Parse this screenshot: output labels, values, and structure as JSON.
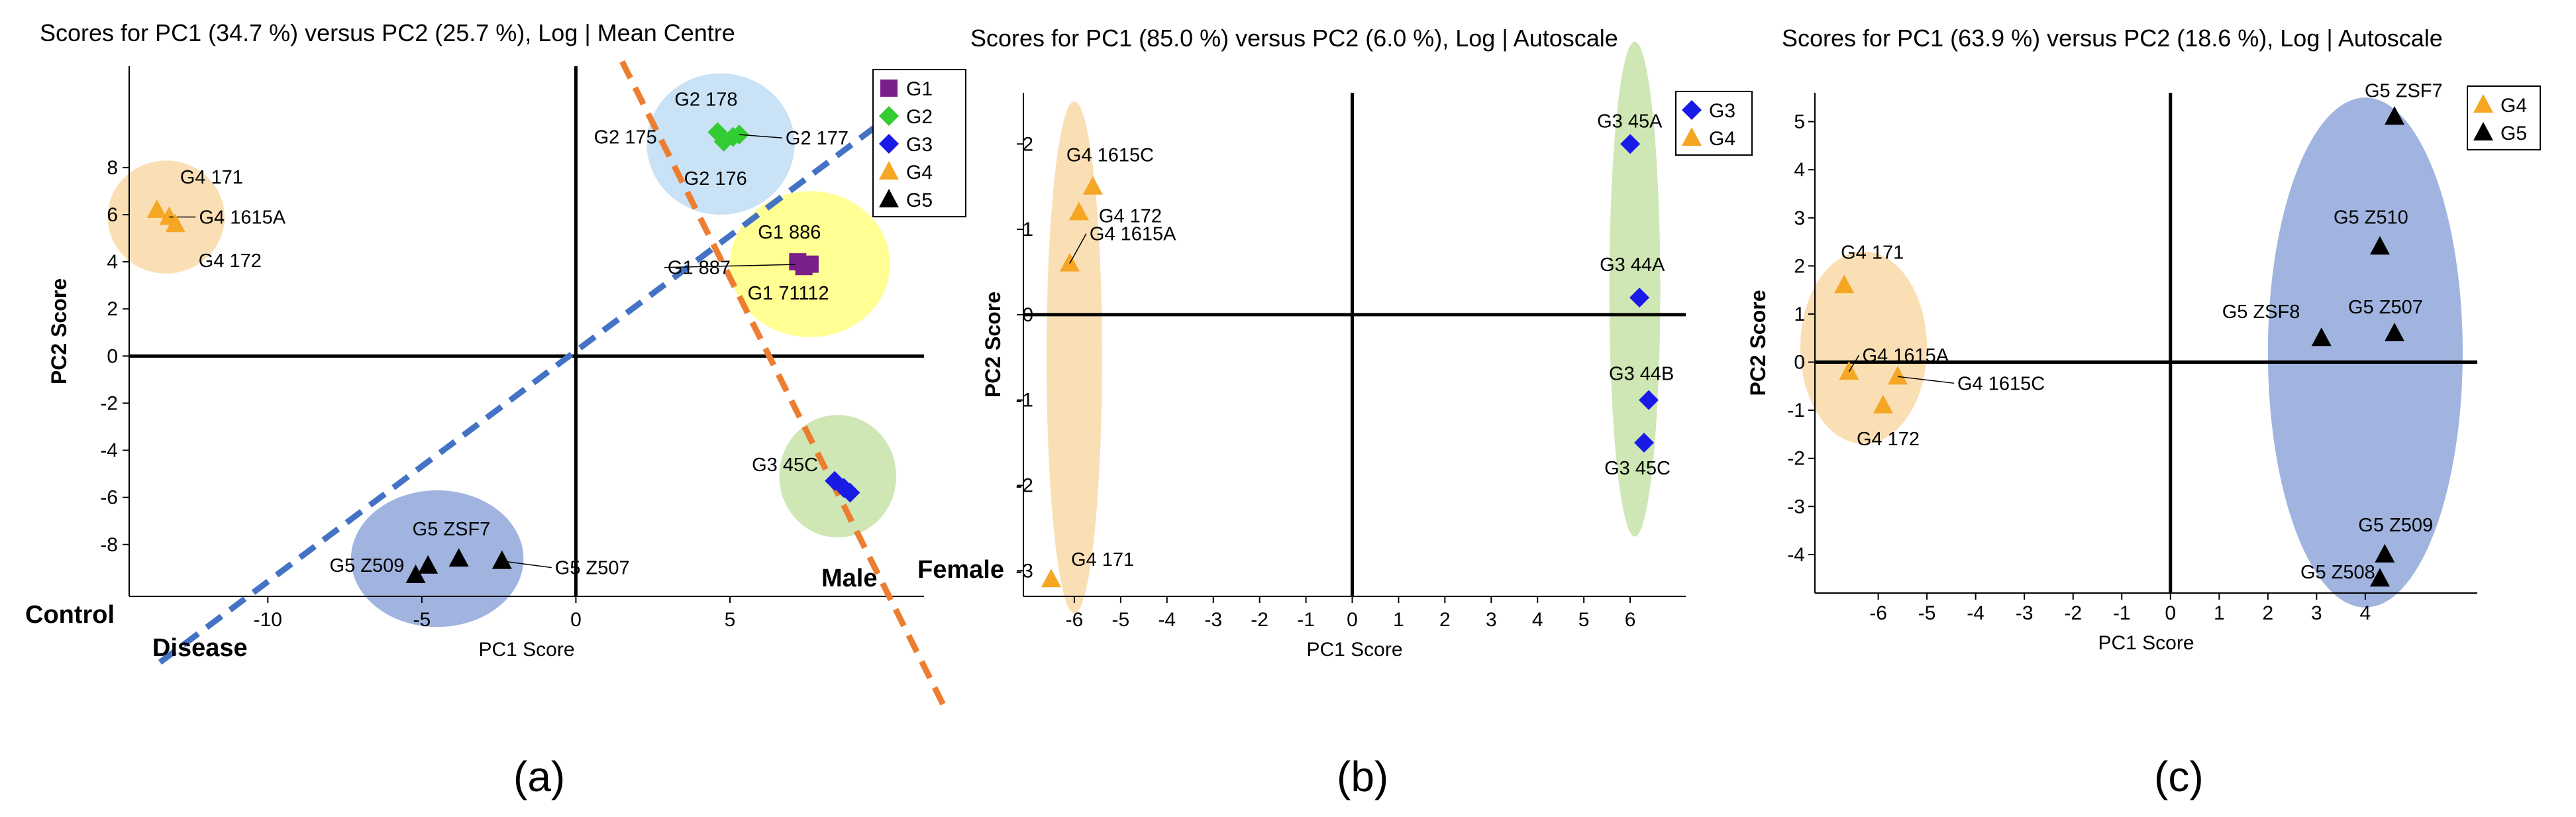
{
  "chart_data": [
    {
      "type": "scatter",
      "title": "Scores for PC1 (34.7 %) versus PC2 (25.7 %), Log | Mean Centre",
      "xlabel": "PC1 Score",
      "ylabel": "PC2 Score",
      "xlim": [
        -14.5,
        11.3
      ],
      "ylim": [
        -10.2,
        12.3
      ],
      "xticks": [
        -10,
        -5,
        0,
        5
      ],
      "yticks": [
        8,
        6,
        4,
        2,
        0,
        -2,
        -4,
        -6,
        -8
      ],
      "xtick_labels": [
        "-10",
        "-5",
        "0",
        "5"
      ],
      "ytick_labels": [
        "8",
        "6",
        "4",
        "2",
        "0",
        "-2",
        "-4",
        "-6",
        "-8"
      ],
      "legend": [
        "G1",
        "G2",
        "G3",
        "G4",
        "G5"
      ],
      "legend_position": "top-right",
      "series": [
        {
          "name": "G1",
          "color": "#7B1F8A",
          "marker": "square",
          "points": [
            {
              "x": 7.2,
              "y": 4.0,
              "label": "G1 886"
            },
            {
              "x": 7.6,
              "y": 3.9,
              "label": "G1 887"
            },
            {
              "x": 7.4,
              "y": 3.8,
              "label": "G1 71112"
            }
          ]
        },
        {
          "name": "G2",
          "color": "#33CC33",
          "marker": "diamond",
          "points": [
            {
              "x": 4.6,
              "y": 9.5,
              "label": "G2 178"
            },
            {
              "x": 5.1,
              "y": 9.3,
              "label": "G2 175"
            },
            {
              "x": 4.8,
              "y": 9.1,
              "label": "G2 176"
            },
            {
              "x": 5.3,
              "y": 9.4,
              "label": "G2 177"
            }
          ]
        },
        {
          "name": "G3",
          "color": "#1A1AE6",
          "marker": "diamond",
          "points": [
            {
              "x": 8.4,
              "y": -5.3,
              "label": "G3 45C"
            },
            {
              "x": 8.9,
              "y": -5.8
            },
            {
              "x": 8.7,
              "y": -5.6
            }
          ]
        },
        {
          "name": "G4",
          "color": "#F5A623",
          "marker": "triangle",
          "points": [
            {
              "x": -13.6,
              "y": 6.2,
              "label": "G4 171"
            },
            {
              "x": -13.2,
              "y": 5.9,
              "label": "G4 1615A"
            },
            {
              "x": -13.0,
              "y": 5.6,
              "label": "G4 172"
            }
          ]
        },
        {
          "name": "G5",
          "color": "#000000",
          "marker": "triangle",
          "points": [
            {
              "x": -5.2,
              "y": -9.3,
              "label": "G5 Z509"
            },
            {
              "x": -3.8,
              "y": -8.6,
              "label": "G5 ZSF7"
            },
            {
              "x": -4.8,
              "y": -8.9
            },
            {
              "x": -2.4,
              "y": -8.7,
              "label": "G5 Z507"
            }
          ]
        }
      ],
      "ellipses": [
        {
          "group": "G4",
          "color": "#F9D9A8",
          "cx": -13.3,
          "cy": 5.9,
          "rx": 1.9,
          "ry": 2.4,
          "angle": 0
        },
        {
          "group": "G2",
          "color": "#BFDDF5",
          "cx": 4.7,
          "cy": 9.0,
          "rx": 2.4,
          "ry": 3.0,
          "angle": 0
        },
        {
          "group": "G1",
          "color": "#FFFF80",
          "cx": 7.6,
          "cy": 3.9,
          "rx": 2.6,
          "ry": 3.1,
          "angle": 0
        },
        {
          "group": "G3",
          "color": "#C7E3A8",
          "cx": 8.5,
          "cy": -5.1,
          "rx": 1.9,
          "ry": 2.6,
          "angle": 0
        },
        {
          "group": "G5",
          "color": "#8FA7D9",
          "cx": -4.5,
          "cy": -8.6,
          "rx": 2.8,
          "ry": 2.9,
          "angle": 0
        }
      ],
      "divider_lines": [
        {
          "color": "#4472C4",
          "from": [
            -13.5,
            -13.0
          ],
          "to": [
            10.0,
            10.0
          ],
          "labels": [
            "Control",
            "Disease"
          ]
        },
        {
          "color": "#ED7D31",
          "from": [
            1.5,
            12.5
          ],
          "to": [
            12.0,
            -15.0
          ],
          "labels": [
            "Male",
            "Female"
          ]
        }
      ]
    },
    {
      "type": "scatter",
      "title": "Scores for PC1 (85.0 %) versus PC2 (6.0 %), Log | Autoscale",
      "xlabel": "PC1 Score",
      "ylabel": "PC2 Score",
      "xlim": [
        -7.1,
        7.2
      ],
      "ylim": [
        -3.3,
        2.6
      ],
      "xticks": [
        -6,
        -5,
        -4,
        -3,
        -2,
        -1,
        0,
        1,
        2,
        3,
        4,
        5,
        6
      ],
      "yticks": [
        2,
        1,
        0,
        -1,
        -2,
        -3
      ],
      "xtick_labels": [
        "-6",
        "-5",
        "-4",
        "-3",
        "-2",
        "-1",
        "0",
        "1",
        "2",
        "3",
        "4",
        "5",
        "6"
      ],
      "ytick_labels": [
        "2",
        "1",
        "0",
        "-1",
        "-2",
        "-3"
      ],
      "legend": [
        "G3",
        "G4"
      ],
      "legend_position": "top-right",
      "series": [
        {
          "name": "G3",
          "color": "#1A1AE6",
          "marker": "diamond",
          "points": [
            {
              "x": 6.0,
              "y": 2.0,
              "label": "G3 45A"
            },
            {
              "x": 6.2,
              "y": 0.2,
              "label": "G3 44A"
            },
            {
              "x": 6.4,
              "y": -1.0,
              "label": "G3 44B"
            },
            {
              "x": 6.3,
              "y": -1.5,
              "label": "G3 45C"
            }
          ]
        },
        {
          "name": "G4",
          "color": "#F5A623",
          "marker": "triangle",
          "points": [
            {
              "x": -5.6,
              "y": 1.5,
              "label": "G4 1615C"
            },
            {
              "x": -5.9,
              "y": 1.2,
              "label": "G4 172"
            },
            {
              "x": -6.1,
              "y": 0.6,
              "label": "G4 1615A"
            },
            {
              "x": -6.5,
              "y": -3.1,
              "label": "G4 171"
            }
          ]
        }
      ],
      "ellipses": [
        {
          "group": "G4",
          "color": "#F9D9A8",
          "cx": -6.0,
          "cy": -0.5,
          "rx": 0.6,
          "ry": 3.0,
          "angle": 0
        },
        {
          "group": "G3",
          "color": "#C7E3A8",
          "cx": 6.1,
          "cy": 0.3,
          "rx": 0.55,
          "ry": 2.9,
          "angle": 0
        }
      ]
    },
    {
      "type": "scatter",
      "title": "Scores for PC1 (63.9 %) versus PC2 (18.6 %), Log | Autoscale",
      "xlabel": "PC1 Score",
      "ylabel": "PC2 Score",
      "xlim": [
        -7.3,
        6.3
      ],
      "ylim": [
        -4.8,
        5.6
      ],
      "xticks": [
        -6,
        -5,
        -4,
        -3,
        -2,
        -1,
        0,
        1,
        2,
        3,
        4
      ],
      "yticks": [
        5,
        4,
        3,
        2,
        1,
        0,
        -1,
        -2,
        -3,
        -4
      ],
      "xtick_labels": [
        "-6",
        "-5",
        "-4",
        "-3",
        "-2",
        "-1",
        "0",
        "1",
        "2",
        "3",
        "4"
      ],
      "ytick_labels": [
        "5",
        "4",
        "3",
        "2",
        "1",
        "0",
        "-1",
        "-2",
        "-3",
        "-4"
      ],
      "legend": [
        "G4",
        "G5"
      ],
      "legend_position": "top-right",
      "series": [
        {
          "name": "G4",
          "color": "#F5A623",
          "marker": "triangle",
          "points": [
            {
              "x": -6.7,
              "y": 1.6,
              "label": "G4 171"
            },
            {
              "x": -6.6,
              "y": -0.2,
              "label": "G4 1615A"
            },
            {
              "x": -5.6,
              "y": -0.3,
              "label": "G4 1615C"
            },
            {
              "x": -5.9,
              "y": -0.9,
              "label": "G4 172"
            }
          ]
        },
        {
          "name": "G5",
          "color": "#000000",
          "marker": "triangle",
          "points": [
            {
              "x": 4.6,
              "y": 5.1,
              "label": "G5 ZSF7"
            },
            {
              "x": 4.3,
              "y": 2.4,
              "label": "G5 Z510"
            },
            {
              "x": 3.1,
              "y": 0.5,
              "label": "G5 ZSF8"
            },
            {
              "x": 4.6,
              "y": 0.6,
              "label": "G5 Z507"
            },
            {
              "x": 4.4,
              "y": -4.0,
              "label": "G5 Z509"
            },
            {
              "x": 4.3,
              "y": -4.5,
              "label": "G5 Z508"
            }
          ]
        }
      ],
      "ellipses": [
        {
          "group": "G4",
          "color": "#F9D9A8",
          "cx": -6.3,
          "cy": 0.3,
          "rx": 1.3,
          "ry": 2.0,
          "angle": 0
        },
        {
          "group": "G5",
          "color": "#8FA7D9",
          "cx": 4.0,
          "cy": 0.2,
          "rx": 2.0,
          "ry": 5.3,
          "angle": 0
        }
      ]
    }
  ],
  "panel_labels": [
    "(a)",
    "(b)",
    "(c)"
  ]
}
